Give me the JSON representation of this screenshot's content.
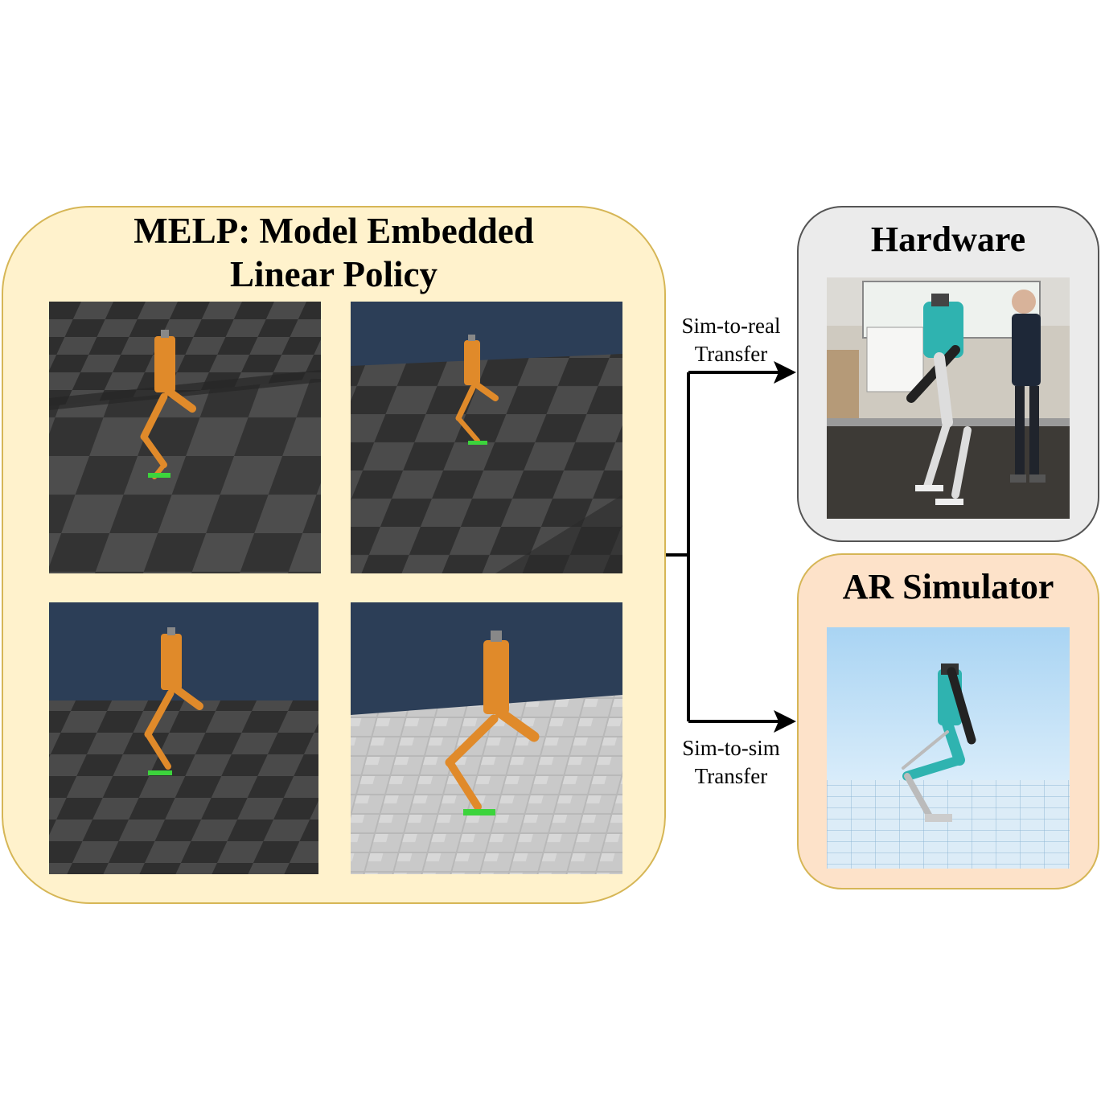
{
  "melp": {
    "title_line1": "MELP: Model Embedded",
    "title_line2": "Linear Policy",
    "frames": [
      {
        "scene": "dark-checkerboard-step-terrain"
      },
      {
        "scene": "dark-checkerboard-slope-terrain"
      },
      {
        "scene": "dark-checkerboard-flat-terrain"
      },
      {
        "scene": "gray-rough-block-terrain"
      }
    ]
  },
  "hardware": {
    "title": "Hardware",
    "photo": "robot-hardware-photo-with-person"
  },
  "ar_simulator": {
    "title": "AR Simulator",
    "render": "ar-simulator-render"
  },
  "transfers": {
    "sim_to_real": {
      "line1": "Sim-to-real",
      "line2": "Transfer"
    },
    "sim_to_sim": {
      "line1": "Sim-to-sim",
      "line2": "Transfer"
    }
  },
  "colors": {
    "melp_panel_fill": "#fff2cc",
    "melp_panel_border": "#d6b656",
    "hardware_panel_fill": "#ebebeb",
    "hardware_panel_border": "#555555",
    "sim_panel_fill": "#fde2c9",
    "robot_orange": "#e08a2a",
    "robot_teal": "#2fb3b0",
    "sky_dark": "#2c3e57",
    "sky_light": "#b9dcf5"
  }
}
